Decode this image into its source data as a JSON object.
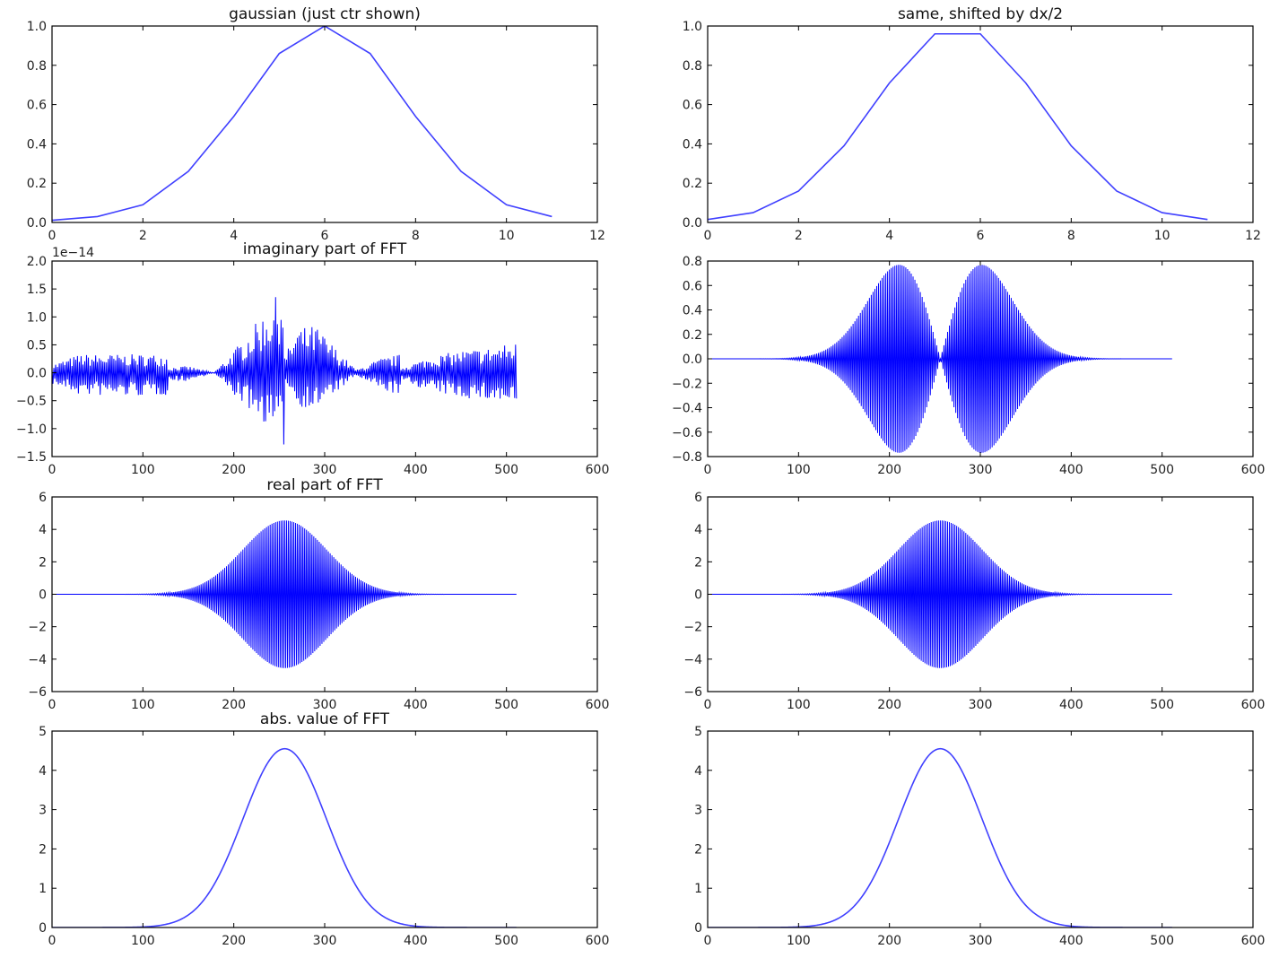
{
  "line_color": "#0000ff",
  "chart_data": [
    {
      "type": "line",
      "title": "gaussian (just ctr shown)",
      "xlim": [
        0,
        12
      ],
      "ylim": [
        0,
        1
      ],
      "xticks": [
        "0",
        "2",
        "4",
        "6",
        "8",
        "10",
        "12"
      ],
      "yticks": [
        "0.0",
        "0.2",
        "0.4",
        "0.6",
        "0.8",
        "1.0"
      ],
      "x": [
        0,
        1,
        2,
        3,
        4,
        5,
        6,
        7,
        8,
        9,
        10,
        11
      ],
      "y": [
        0.011,
        0.03,
        0.09,
        0.26,
        0.54,
        0.86,
        1.0,
        0.86,
        0.54,
        0.26,
        0.09,
        0.03
      ]
    },
    {
      "type": "line",
      "title": "same, shifted by dx/2",
      "xlim": [
        0,
        12
      ],
      "ylim": [
        0,
        1
      ],
      "xticks": [
        "0",
        "2",
        "4",
        "6",
        "8",
        "10",
        "12"
      ],
      "yticks": [
        "0.0",
        "0.2",
        "0.4",
        "0.6",
        "0.8",
        "1.0"
      ],
      "x": [
        0,
        1,
        2,
        3,
        4,
        5,
        6,
        7,
        8,
        9,
        10,
        11
      ],
      "y": [
        0.015,
        0.05,
        0.16,
        0.39,
        0.71,
        0.96,
        0.96,
        0.71,
        0.39,
        0.16,
        0.05,
        0.015
      ]
    },
    {
      "type": "line",
      "title": "imaginary part of FFT",
      "offset_label": "1e−14",
      "xlim": [
        0,
        600
      ],
      "ylim": [
        -1.5,
        2.0
      ],
      "xticks": [
        "0",
        "100",
        "200",
        "300",
        "400",
        "500",
        "600"
      ],
      "yticks": [
        "−1.5",
        "−1.0",
        "−0.5",
        "0.0",
        "0.5",
        "1.0",
        "1.5",
        "2.0"
      ],
      "n_points": 512,
      "kind": "noise",
      "envelope_x": [
        0,
        30,
        64,
        96,
        127,
        128,
        150,
        178,
        200,
        230,
        250,
        255,
        256,
        270,
        290,
        320,
        335,
        360,
        383,
        384,
        420,
        450,
        480,
        511
      ],
      "envelope_upper": [
        0.15,
        0.33,
        0.33,
        0.33,
        0.33,
        0.1,
        0.12,
        0.0,
        0.4,
        1.0,
        1.45,
        1.65,
        0.3,
        0.8,
        0.85,
        0.3,
        0.05,
        0.25,
        0.33,
        0.1,
        0.3,
        0.4,
        0.45,
        0.55
      ],
      "envelope_lower": [
        -0.2,
        -0.4,
        -0.42,
        -0.42,
        -0.4,
        -0.15,
        -0.15,
        0.0,
        -0.4,
        -0.85,
        -1.1,
        -1.35,
        -0.1,
        -0.6,
        -0.65,
        -0.25,
        -0.05,
        -0.3,
        -0.4,
        -0.15,
        -0.35,
        -0.45,
        -0.5,
        -0.6
      ]
    },
    {
      "type": "line",
      "title": "",
      "xlim": [
        0,
        600
      ],
      "ylim": [
        -0.8,
        0.8
      ],
      "xticks": [
        "0",
        "100",
        "200",
        "300",
        "400",
        "500",
        "600"
      ],
      "yticks": [
        "−0.8",
        "−0.6",
        "−0.4",
        "−0.2",
        "0.0",
        "0.2",
        "0.4",
        "0.6",
        "0.8"
      ],
      "n_points": 512,
      "kind": "alt_sin",
      "amplitude": 4.55,
      "center": 256,
      "sigma": 46
    },
    {
      "type": "line",
      "title": "real part of FFT",
      "xlim": [
        0,
        600
      ],
      "ylim": [
        -6,
        6
      ],
      "xticks": [
        "0",
        "100",
        "200",
        "300",
        "400",
        "500",
        "600"
      ],
      "yticks": [
        "−6",
        "−4",
        "−2",
        "0",
        "2",
        "4",
        "6"
      ],
      "n_points": 512,
      "kind": "alt",
      "amplitude": 4.55,
      "center": 256,
      "sigma": 46
    },
    {
      "type": "line",
      "title": "",
      "xlim": [
        0,
        600
      ],
      "ylim": [
        -6,
        6
      ],
      "xticks": [
        "0",
        "100",
        "200",
        "300",
        "400",
        "500",
        "600"
      ],
      "yticks": [
        "−6",
        "−4",
        "−2",
        "0",
        "2",
        "4",
        "6"
      ],
      "n_points": 512,
      "kind": "alt",
      "amplitude": 4.55,
      "center": 256,
      "sigma": 46
    },
    {
      "type": "line",
      "title": "abs. value of FFT",
      "xlim": [
        0,
        600
      ],
      "ylim": [
        0,
        5
      ],
      "xticks": [
        "0",
        "100",
        "200",
        "300",
        "400",
        "500",
        "600"
      ],
      "yticks": [
        "0",
        "1",
        "2",
        "3",
        "4",
        "5"
      ],
      "n_points": 512,
      "kind": "gauss",
      "amplitude": 4.55,
      "center": 256,
      "sigma": 46
    },
    {
      "type": "line",
      "title": "",
      "xlim": [
        0,
        600
      ],
      "ylim": [
        0,
        5
      ],
      "xticks": [
        "0",
        "100",
        "200",
        "300",
        "400",
        "500",
        "600"
      ],
      "yticks": [
        "0",
        "1",
        "2",
        "3",
        "4",
        "5"
      ],
      "n_points": 512,
      "kind": "gauss",
      "amplitude": 4.55,
      "center": 256,
      "sigma": 46
    }
  ]
}
